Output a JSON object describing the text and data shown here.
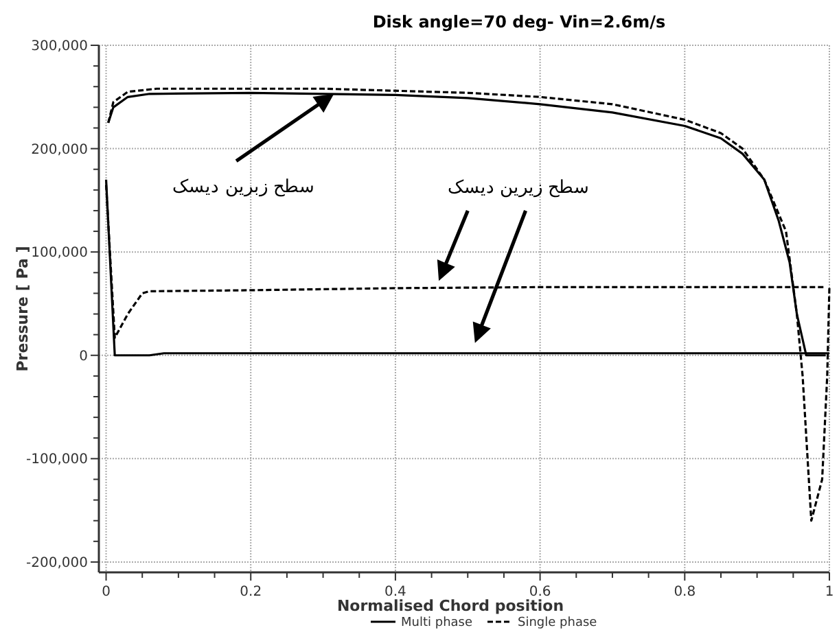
{
  "chart_data": {
    "type": "line",
    "title": "Disk angle=70 deg- Vin=2.6m/s",
    "xlabel": "Normalised Chord position",
    "ylabel": "Pressure [ Pa ]",
    "xlim": [
      -0.01,
      1.0
    ],
    "ylim": [
      -210000,
      300000
    ],
    "xticks": [
      0,
      {
        "value": 0.05,
        "label": null
      },
      {
        "value": 0.1,
        "label": null
      },
      {
        "value": 0.15,
        "label": null
      },
      0.2,
      {
        "value": 0.25,
        "label": null
      },
      {
        "value": 0.3,
        "label": null
      },
      {
        "value": 0.35,
        "label": null
      },
      0.4,
      {
        "value": 0.45,
        "label": null
      },
      {
        "value": 0.5,
        "label": null
      },
      {
        "value": 0.55,
        "label": null
      },
      0.6,
      {
        "value": 0.65,
        "label": null
      },
      {
        "value": 0.7,
        "label": null
      },
      {
        "value": 0.75,
        "label": null
      },
      0.8,
      {
        "value": 0.85,
        "label": null
      },
      {
        "value": 0.9,
        "label": null
      },
      {
        "value": 0.95,
        "label": null
      },
      1
    ],
    "yticks": [
      {
        "value": -200000,
        "label": "-200,000"
      },
      {
        "value": -180000,
        "label": null
      },
      {
        "value": -160000,
        "label": null
      },
      {
        "value": -140000,
        "label": null
      },
      {
        "value": -120000,
        "label": null
      },
      {
        "value": -100000,
        "label": "-100,000"
      },
      {
        "value": -80000,
        "label": null
      },
      {
        "value": -60000,
        "label": null
      },
      {
        "value": -40000,
        "label": null
      },
      {
        "value": -20000,
        "label": null
      },
      0,
      {
        "value": 20000,
        "label": null
      },
      {
        "value": 40000,
        "label": null
      },
      {
        "value": 60000,
        "label": null
      },
      {
        "value": 80000,
        "label": null
      },
      {
        "value": 100000,
        "label": "100,000"
      },
      {
        "value": 120000,
        "label": null
      },
      {
        "value": 140000,
        "label": null
      },
      {
        "value": 160000,
        "label": null
      },
      {
        "value": 180000,
        "label": null
      },
      {
        "value": 200000,
        "label": "200,000"
      },
      {
        "value": 220000,
        "label": null
      },
      {
        "value": 240000,
        "label": null
      },
      {
        "value": 260000,
        "label": null
      },
      {
        "value": 280000,
        "label": null
      },
      {
        "value": 300000,
        "label": "300,000"
      }
    ],
    "grid": true,
    "legend": "bottom",
    "series": [
      {
        "name": "Multi phase",
        "color": "#000000",
        "line_style": "solid",
        "x": [
          0.003,
          0.01,
          0.03,
          0.06,
          0.2,
          0.4,
          0.5,
          0.6,
          0.7,
          0.8,
          0.85,
          0.88,
          0.91,
          0.93,
          0.945,
          0.955,
          0.968,
          0.995
        ],
        "values": [
          225000,
          240000,
          250000,
          253000,
          254000,
          252000,
          249000,
          243000,
          235000,
          222000,
          210000,
          195000,
          170000,
          130000,
          90000,
          40000,
          0,
          0
        ]
      },
      {
        "color": "#000000",
        "line_style": "solid",
        "x": [
          0,
          0.012,
          0.06,
          0.08,
          1.0
        ],
        "values": [
          170000,
          0,
          0,
          2000,
          2000
        ]
      },
      {
        "name": "Single phase",
        "color": "#000000",
        "line_style": "dashed",
        "x": [
          0.003,
          0.01,
          0.03,
          0.07,
          0.3,
          0.5,
          0.6,
          0.7,
          0.8,
          0.85,
          0.88,
          0.91,
          0.94,
          0.955,
          0.963,
          0.975,
          0.99,
          0.997,
          1.0
        ],
        "values": [
          225000,
          245000,
          255000,
          258000,
          258000,
          254000,
          250000,
          243000,
          228000,
          215000,
          200000,
          170000,
          120000,
          40000,
          -20000,
          -160000,
          -120000,
          -20000,
          66000
        ]
      },
      {
        "color": "#000000",
        "line_style": "dashed",
        "x": [
          0,
          0.012,
          0.03,
          0.05,
          0.06,
          0.2,
          0.4,
          0.6,
          0.8,
          0.995
        ],
        "values": [
          165000,
          17000,
          40000,
          60000,
          62000,
          63000,
          65000,
          66000,
          66000,
          66000
        ]
      }
    ],
    "annotations": [
      "سطح زبرین دیسک",
      "سطح زیرین دیسک"
    ]
  }
}
